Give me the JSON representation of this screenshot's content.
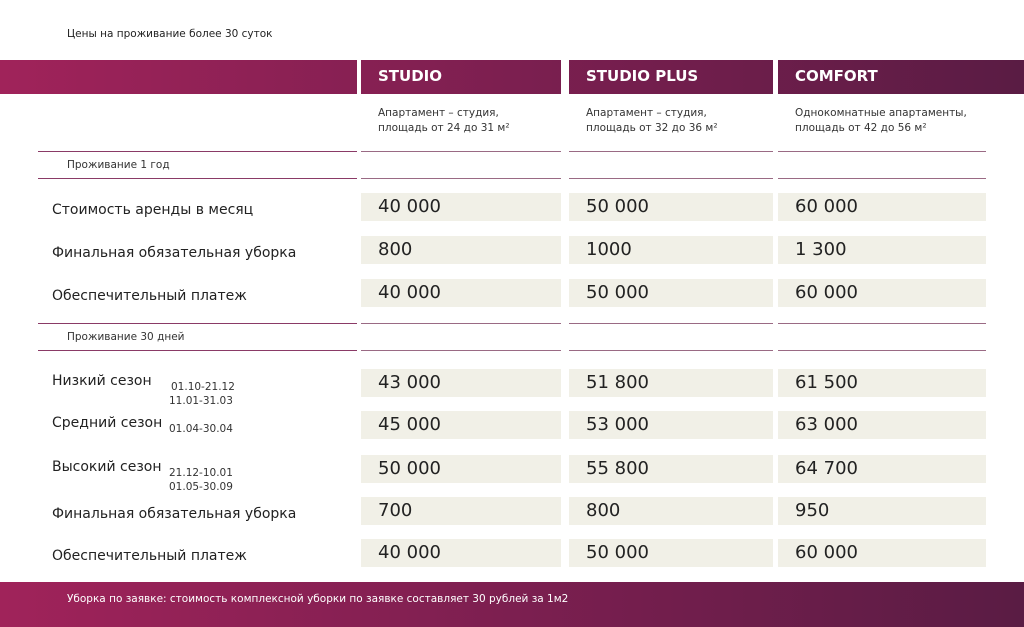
{
  "header": {
    "title": "Цены на проживание более 30 суток"
  },
  "columns": [
    {
      "name": "STUDIO",
      "description": [
        "Апартамент – студия,",
        "площадь от 24 до 31 м²"
      ]
    },
    {
      "name": "STUDIO PLUS",
      "description": [
        "Апартамент – студия,",
        "площадь от 32 до 36 м²"
      ]
    },
    {
      "name": "COMFORT",
      "description": [
        "Однокомнатные апартаменты,",
        "площадь от 42 до 56 м²"
      ]
    }
  ],
  "sections": [
    {
      "title": "Проживание 1 год",
      "rows": [
        {
          "label": "Стоимость аренды в месяц",
          "values": [
            "40 000",
            "50 000",
            "60 000"
          ]
        },
        {
          "label": "Финальная обязательная уборка",
          "values": [
            "800",
            "1000",
            "1 300"
          ]
        },
        {
          "label": "Обеспечительный платеж",
          "values": [
            "40 000",
            "50 000",
            "60 000"
          ]
        }
      ]
    },
    {
      "title": "Проживание 30 дней",
      "rows": [
        {
          "label": "Низкий сезон",
          "dates": [
            "01.10-21.12",
            "11.01-31.03"
          ],
          "values": [
            "43 000",
            "51 800",
            "61 500"
          ]
        },
        {
          "label": "Средний сезон",
          "dates": [
            "01.04-30.04"
          ],
          "values": [
            "45 000",
            "53 000",
            "63 000"
          ]
        },
        {
          "label": "Высокий сезон",
          "dates": [
            "21.12-10.01",
            "01.05-30.09"
          ],
          "values": [
            "50 000",
            "55 800",
            "64 700"
          ]
        },
        {
          "label": "Финальная обязательная уборка",
          "values": [
            "700",
            "800",
            "950"
          ]
        },
        {
          "label": "Обеспечительный платеж",
          "values": [
            "40 000",
            "50 000",
            "60 000"
          ]
        }
      ]
    }
  ],
  "footer": {
    "text": "Уборка по заявке:  стоимость комплексной уборки по заявке составляет 30 рублей за 1м2"
  }
}
